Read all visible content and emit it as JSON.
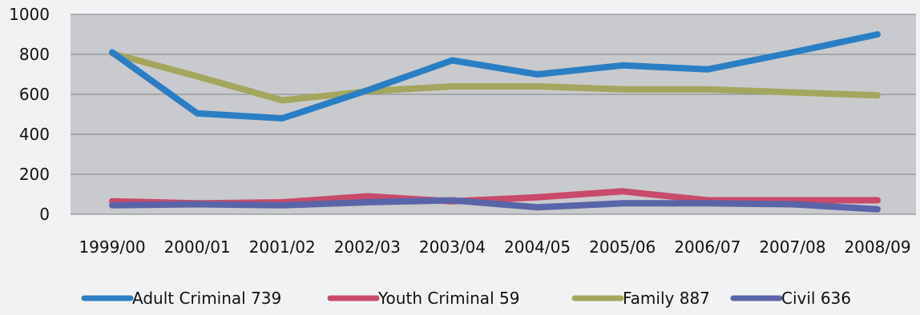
{
  "chart_data": {
    "type": "line",
    "categories": [
      "1999/00",
      "2000/01",
      "2001/02",
      "2002/03",
      "2003/04",
      "2004/05",
      "2005/06",
      "2006/07",
      "2007/08",
      "2008/09"
    ],
    "ylim": [
      0,
      1000
    ],
    "yticks": [
      0,
      200,
      400,
      600,
      800,
      1000
    ],
    "grid": true,
    "legend_position": "bottom",
    "series": [
      {
        "name": "Adult Criminal  739",
        "color": "#2a7fc4",
        "values": [
          810,
          505,
          480,
          620,
          770,
          700,
          745,
          725,
          810,
          900
        ]
      },
      {
        "name": "Youth Criminal 59",
        "color": "#c94a6a",
        "values": [
          65,
          55,
          60,
          90,
          65,
          85,
          115,
          70,
          70,
          70
        ]
      },
      {
        "name": "Family 887",
        "color": "#a3a65c",
        "values": [
          805,
          690,
          570,
          615,
          640,
          640,
          625,
          625,
          610,
          595
        ]
      },
      {
        "name": "Civil 636",
        "color": "#5a64a8",
        "values": [
          45,
          50,
          45,
          60,
          70,
          35,
          55,
          55,
          50,
          25
        ]
      }
    ]
  }
}
